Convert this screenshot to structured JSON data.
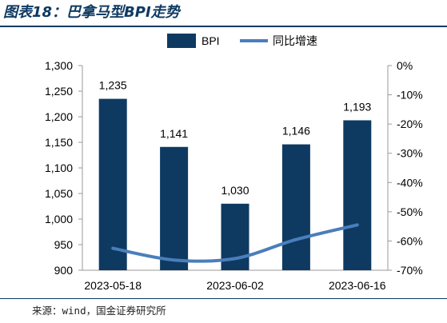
{
  "header": {
    "title": "图表18：巴拿马型BPI走势"
  },
  "footer": {
    "source": "来源：wind，国金证券研究所"
  },
  "chart_data": {
    "type": "bar",
    "categories": [
      "2023-05-18",
      "",
      "2023-06-02",
      "",
      "2023-06-16"
    ],
    "series": [
      {
        "name": "BPI",
        "kind": "bar",
        "axis": "left",
        "color": "#0e3a62",
        "values": [
          1235,
          1141,
          1030,
          1146,
          1193
        ]
      },
      {
        "name": "同比增速",
        "kind": "line",
        "axis": "right",
        "color": "#4a7ebb",
        "values": [
          -62.5,
          -66.5,
          -66,
          -59.5,
          -54.5
        ]
      }
    ],
    "y_left": {
      "lim": [
        900,
        1300
      ],
      "ticks": [
        "900",
        "950",
        "1,000",
        "1,050",
        "1,100",
        "1,150",
        "1,200",
        "1,250",
        "1,300"
      ]
    },
    "y_right": {
      "lim": [
        -70,
        0
      ],
      "ticks": [
        "-70%",
        "-60%",
        "-50%",
        "-40%",
        "-30%",
        "-20%",
        "-10%",
        "0%"
      ]
    },
    "data_labels": [
      "1,235",
      "1,141",
      "1,030",
      "1,146",
      "1,193"
    ],
    "x_tick_labels": [
      "2023-05-18",
      "2023-06-02",
      "2023-06-16"
    ],
    "legend_position": "top-center",
    "grid": false
  }
}
